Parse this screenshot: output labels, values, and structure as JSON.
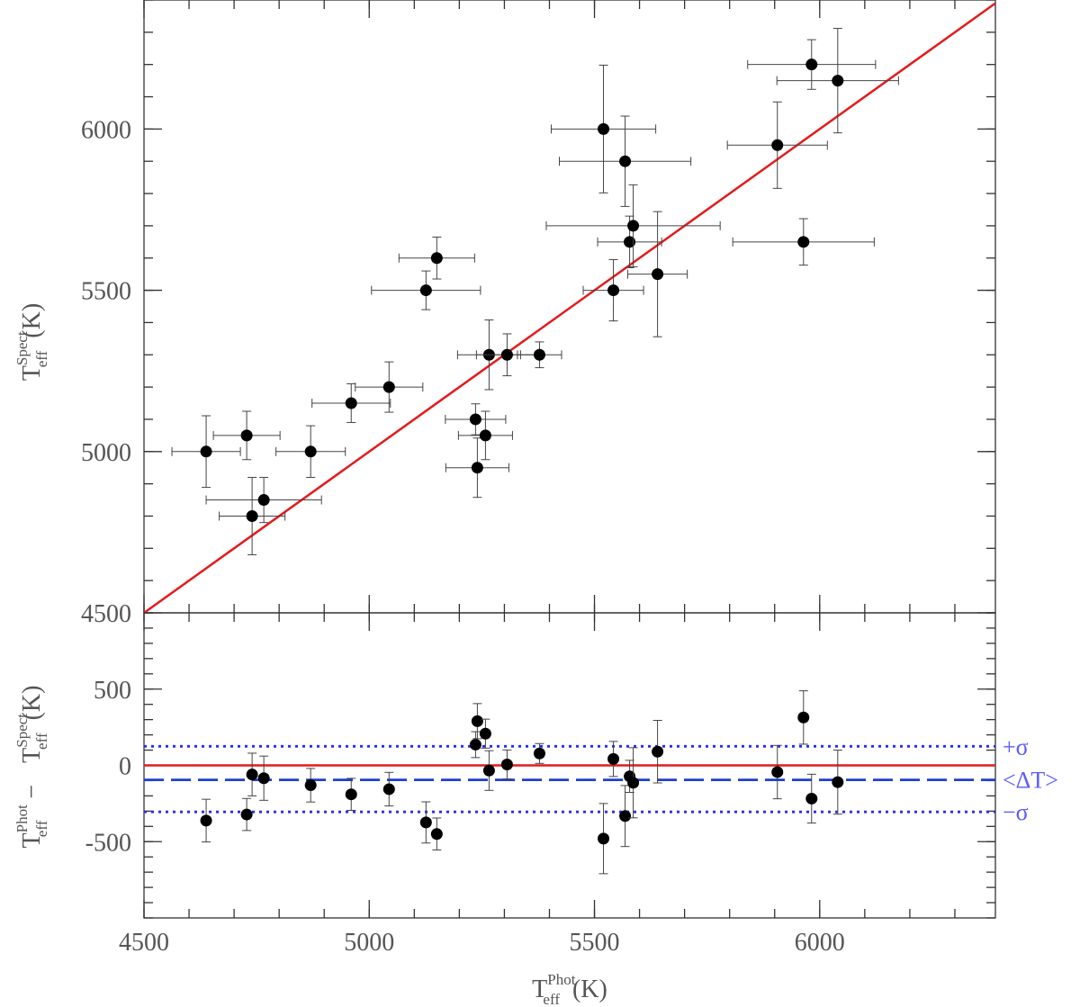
{
  "chart_data": [
    {
      "type": "scatter",
      "panel": "top",
      "y_label": {
        "base": "T",
        "sup": "Spect",
        "sub": "eff",
        "unit": "(K)"
      },
      "xlim": [
        4500,
        6390
      ],
      "ylim": [
        4500,
        6400
      ],
      "yticks": [
        4500,
        5000,
        5500,
        6000
      ],
      "minor_tick_step": 100,
      "diagonal": {
        "slope": 1,
        "intercept": 0,
        "color": "#e41a1c"
      },
      "series": [
        {
          "color": "#000000",
          "x": [
            4638,
            4728,
            4740,
            4766,
            4870,
            4960,
            5044,
            5126,
            5150,
            5236,
            5240,
            5258,
            5266,
            5306,
            5378,
            5520,
            5542,
            5568,
            5578,
            5586,
            5640,
            5906,
            5964,
            5982,
            6040
          ],
          "values": [
            5000,
            5050,
            4800,
            4850,
            5000,
            5150,
            5200,
            5500,
            5600,
            5100,
            4950,
            5050,
            5300,
            5300,
            5300,
            6000,
            5500,
            5900,
            5650,
            5700,
            5550,
            5950,
            5650,
            6200,
            6150
          ],
          "xerr": [
            76,
            74,
            73,
            128,
            77,
            87,
            75,
            121,
            84,
            67,
            70,
            60,
            70,
            68,
            49,
            116,
            67,
            146,
            71,
            193,
            66,
            111,
            157,
            142,
            135
          ],
          "yerr": [
            111,
            75,
            120,
            70,
            80,
            60,
            78,
            60,
            65,
            48,
            92,
            75,
            108,
            65,
            40,
            198,
            95,
            140,
            80,
            127,
            194,
            134,
            72,
            77,
            162
          ]
        }
      ]
    },
    {
      "type": "scatter",
      "panel": "bottom",
      "x_label": {
        "base": "T",
        "sup": "Phot",
        "sub": "eff",
        "unit": "(K)"
      },
      "y_label": {
        "base1": "T",
        "sup1": "Phot",
        "sub1": "eff",
        "op": "−",
        "base2": "T",
        "sup2": "Spect",
        "sub2": "eff",
        "unit": "(K)"
      },
      "xlim": [
        4500,
        6390
      ],
      "ylim": [
        -1000,
        1000
      ],
      "xticks": [
        4500,
        5000,
        5500,
        6000
      ],
      "yticks": [
        -500,
        0,
        500
      ],
      "minor_tick_step": 100,
      "hlines": [
        {
          "value": 0,
          "color": "#e41a1c",
          "style": "solid"
        },
        {
          "value": -95,
          "color": "#1f3fd0",
          "style": "dashed",
          "label": "<ΔT>"
        },
        {
          "value": 125,
          "color": "#2a2aff",
          "style": "dotted",
          "label": "+σ"
        },
        {
          "value": -305,
          "color": "#2a2aff",
          "style": "dotted",
          "label": "−σ"
        }
      ],
      "series": [
        {
          "color": "#000000",
          "x": [
            4638,
            4728,
            4740,
            4766,
            4870,
            4960,
            5044,
            5126,
            5150,
            5236,
            5240,
            5258,
            5266,
            5306,
            5378,
            5520,
            5542,
            5568,
            5578,
            5586,
            5640,
            5906,
            5964,
            5982,
            6040
          ],
          "values": [
            -362,
            -322,
            -60,
            -84,
            -130,
            -190,
            -156,
            -374,
            -450,
            136,
            290,
            208,
            -34,
            6,
            78,
            -480,
            42,
            -332,
            -72,
            -114,
            90,
            -44,
            314,
            -218,
            -110
          ],
          "yerr": [
            140,
            105,
            140,
            145,
            110,
            105,
            110,
            135,
            105,
            85,
            115,
            95,
            130,
            95,
            65,
            230,
            115,
            200,
            105,
            230,
            205,
            175,
            175,
            160,
            210
          ]
        }
      ]
    }
  ]
}
